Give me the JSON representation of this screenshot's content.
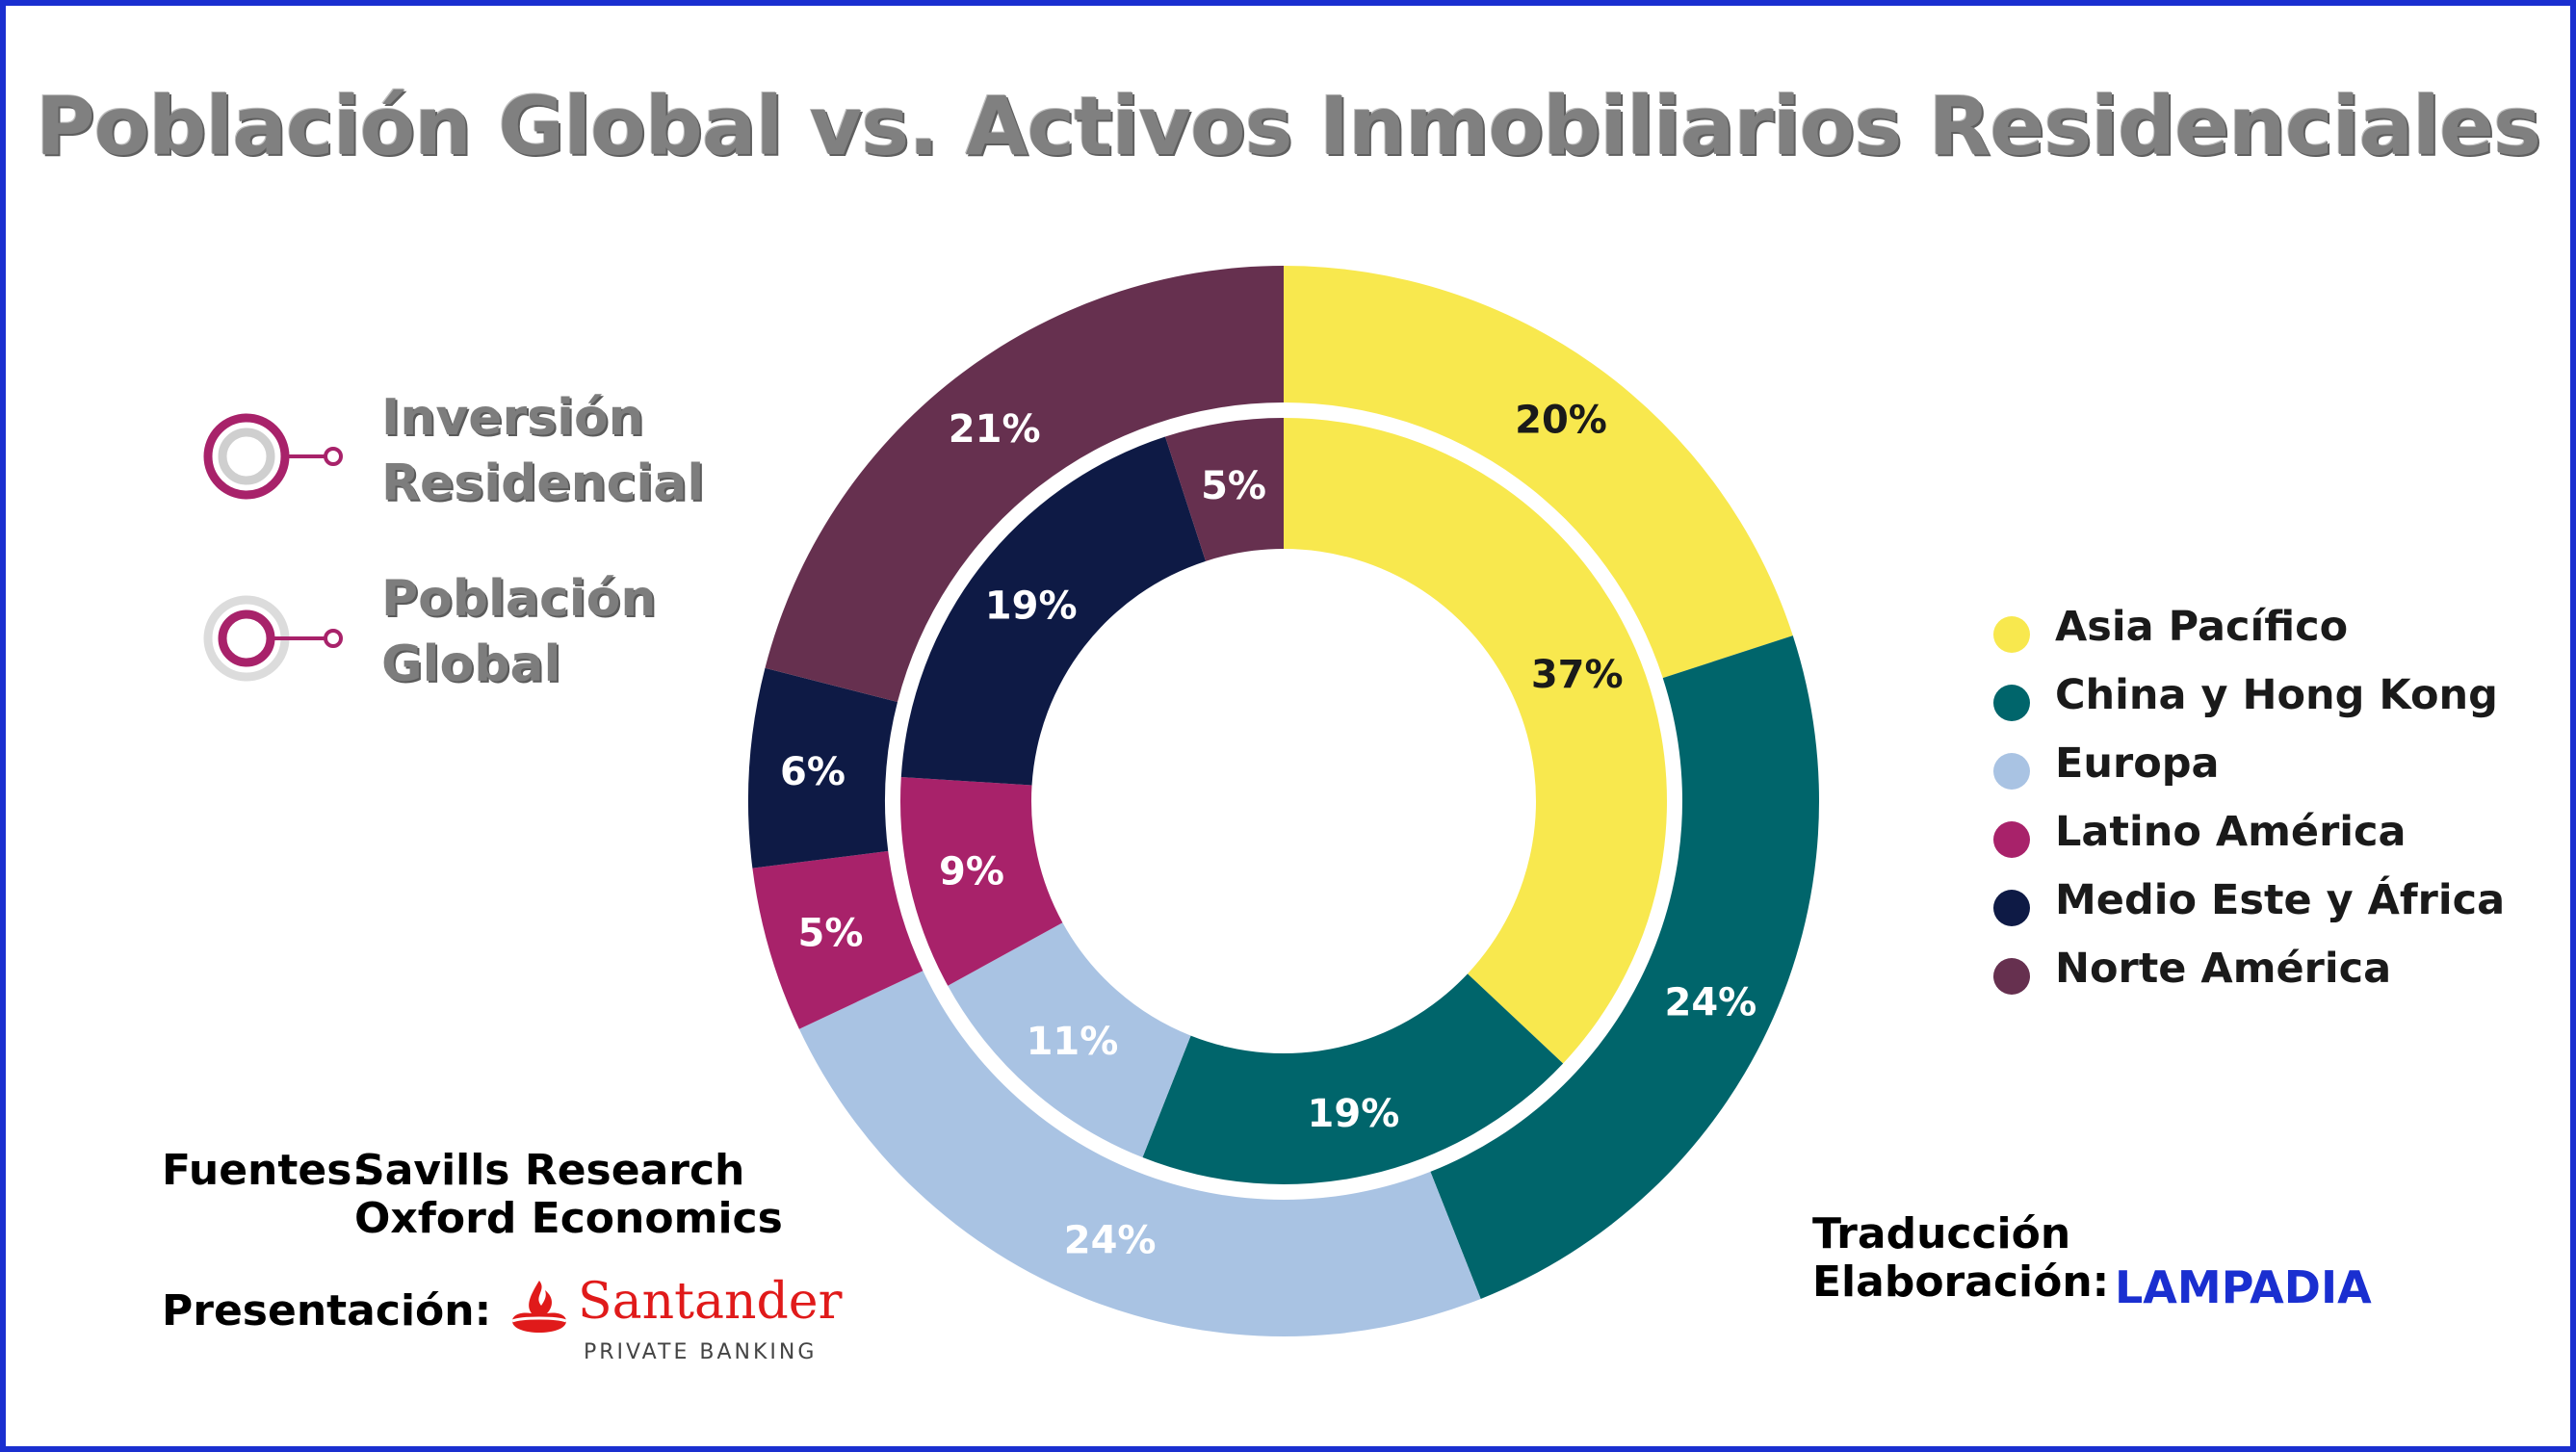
{
  "title": "Población Global vs. Activos Inmobiliarios Residenciales",
  "rings": {
    "outer_label_line1": "Inversión",
    "outer_label_line2": "Residencial",
    "inner_label_line1": "Población",
    "inner_label_line2": "Global",
    "outer_icon": "ring-outer-icon",
    "inner_icon": "ring-inner-icon"
  },
  "credits": {
    "sources_label": "Fuentes:",
    "source_1": "Savills Research",
    "source_2": "Oxford Economics",
    "presentation_label": "Presentación:",
    "presenter_name": "Santander",
    "presenter_sub": "PRIVATE BANKING",
    "presenter_logo_icon": "santander-flame-icon",
    "translation_line1": "Traducción",
    "translation_line2": "Elaboración:",
    "translator": "LAMPADIA"
  },
  "chart_data": {
    "type": "pie",
    "categories": [
      "Asia Pacífico",
      "China y Hong Kong",
      "Europa",
      "Latino América",
      "Medio Este y África",
      "Norte América"
    ],
    "colors": [
      "#f8e84e",
      "#00656b",
      "#a9c3e3",
      "#a8226a",
      "#0e1a45",
      "#66304f"
    ],
    "series": [
      {
        "name": "Inversión Residencial",
        "ring": "outer",
        "values": [
          20,
          24,
          24,
          5,
          6,
          21
        ]
      },
      {
        "name": "Población Global",
        "ring": "inner",
        "values": [
          37,
          19,
          11,
          9,
          19,
          5
        ]
      }
    ],
    "legend_position": "right"
  }
}
